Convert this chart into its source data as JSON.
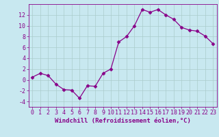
{
  "x": [
    0,
    1,
    2,
    3,
    4,
    5,
    6,
    7,
    8,
    9,
    10,
    11,
    12,
    13,
    14,
    15,
    16,
    17,
    18,
    19,
    20,
    21,
    22,
    23
  ],
  "y": [
    0.5,
    1.2,
    0.8,
    -0.8,
    -1.8,
    -1.9,
    -3.4,
    -1.1,
    -1.2,
    1.2,
    2.0,
    7.0,
    8.0,
    10.0,
    13.0,
    12.5,
    13.0,
    12.0,
    11.2,
    9.7,
    9.2,
    9.0,
    8.1,
    6.7
  ],
  "line_color": "#880088",
  "marker": "D",
  "marker_size": 2.5,
  "background_color": "#c8e8f0",
  "grid_color": "#aacccc",
  "xlabel": "Windchill (Refroidissement éolien,°C)",
  "xlabel_fontsize": 6.5,
  "tick_fontsize": 6,
  "xlim": [
    -0.5,
    23.5
  ],
  "ylim": [
    -5,
    14
  ],
  "yticks": [
    -4,
    -2,
    0,
    2,
    4,
    6,
    8,
    10,
    12
  ],
  "xticks": [
    0,
    1,
    2,
    3,
    4,
    5,
    6,
    7,
    8,
    9,
    10,
    11,
    12,
    13,
    14,
    15,
    16,
    17,
    18,
    19,
    20,
    21,
    22,
    23
  ]
}
